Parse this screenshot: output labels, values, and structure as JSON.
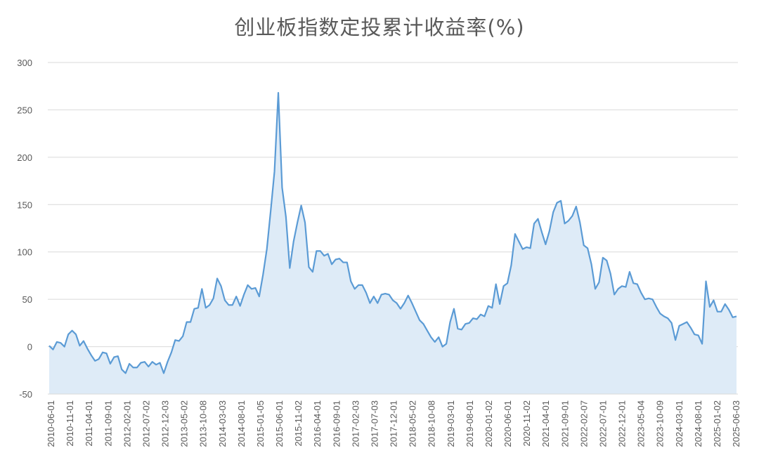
{
  "chart_data": {
    "type": "area",
    "title": "创业板指数定投累计收益率(%)",
    "ylim": [
      -50,
      300
    ],
    "y_ticks": [
      300,
      250,
      200,
      150,
      100,
      50,
      0,
      -50
    ],
    "grid": true,
    "x_tick_labels": [
      "2010-06-01",
      "2010-11-01",
      "2011-04-01",
      "2011-09-01",
      "2012-02-01",
      "2012-07-02",
      "2012-12-03",
      "2013-05-02",
      "2013-10-08",
      "2014-03-03",
      "2014-08-01",
      "2015-01-05",
      "2015-06-01",
      "2015-11-02",
      "2016-04-01",
      "2016-09-01",
      "2017-02-03",
      "2017-07-03",
      "2017-12-01",
      "2018-05-02",
      "2018-10-08",
      "2019-03-01",
      "2019-08-01",
      "2020-01-02",
      "2020-06-01",
      "2020-11-02",
      "2021-04-01",
      "2021-09-01",
      "2022-02-07",
      "2022-07-01",
      "2022-12-01",
      "2023-05-04",
      "2023-10-09",
      "2024-03-01",
      "2024-08-01",
      "2025-01-02",
      "2025-06-03"
    ],
    "series": [
      {
        "color": "#5b9bd5",
        "fill": "#deebf7",
        "values": [
          1,
          -3,
          5,
          4,
          0,
          13,
          17,
          13,
          1,
          6,
          -2,
          -9,
          -15,
          -13,
          -6,
          -7,
          -18,
          -11,
          -10,
          -24,
          -28,
          -18,
          -22,
          -22,
          -17,
          -16,
          -21,
          -16,
          -19,
          -17,
          -28,
          -16,
          -6,
          7,
          6,
          11,
          26,
          26,
          40,
          41,
          61,
          41,
          44,
          51,
          72,
          64,
          49,
          44,
          44,
          53,
          43,
          55,
          65,
          61,
          62,
          53,
          76,
          103,
          143,
          185,
          268,
          168,
          137,
          83,
          111,
          131,
          149,
          131,
          84,
          79,
          101,
          101,
          96,
          98,
          87,
          92,
          93,
          89,
          89,
          69,
          61,
          65,
          65,
          57,
          46,
          53,
          46,
          55,
          56,
          55,
          49,
          46,
          40,
          46,
          54,
          46,
          37,
          28,
          24,
          17,
          10,
          5,
          10,
          0,
          3,
          26,
          40,
          19,
          18,
          24,
          25,
          30,
          29,
          34,
          32,
          43,
          41,
          66,
          45,
          64,
          67,
          86,
          119,
          111,
          103,
          105,
          104,
          130,
          135,
          121,
          108,
          122,
          142,
          152,
          154,
          130,
          133,
          138,
          148,
          131,
          107,
          104,
          87,
          61,
          68,
          94,
          91,
          77,
          55,
          61,
          64,
          63,
          79,
          67,
          66,
          57,
          50,
          51,
          50,
          42,
          35,
          32,
          30,
          25,
          7,
          22,
          24,
          26,
          20,
          13,
          12,
          3,
          69,
          42,
          49,
          37,
          37,
          45,
          39,
          31,
          32
        ]
      }
    ]
  }
}
